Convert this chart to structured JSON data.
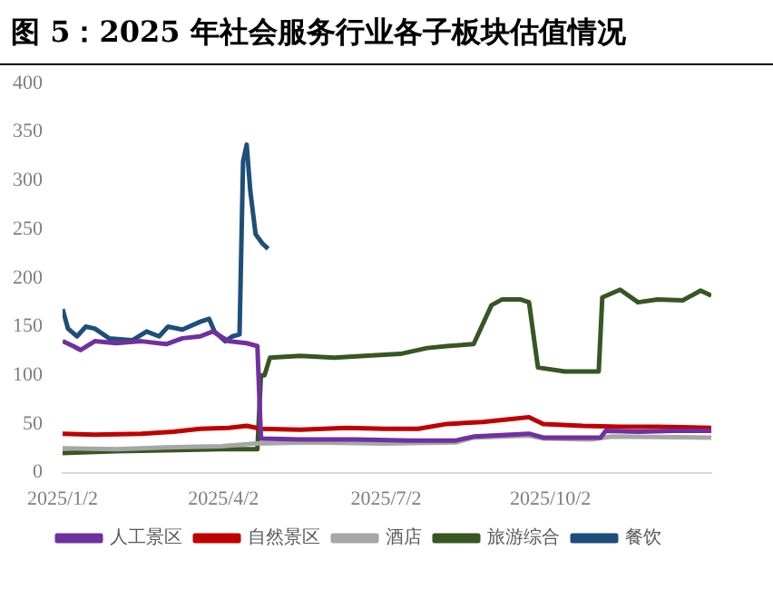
{
  "chart_data": {
    "type": "line",
    "title": "图 5：2025 年社会服务行业各子板块估值情况",
    "xlim": [
      "2025-01-02",
      "2025-12-31"
    ],
    "xticks": [
      {
        "value": "2025-01-02",
        "label": "2025/1/2"
      },
      {
        "value": "2025-04-02",
        "label": "2025/4/2"
      },
      {
        "value": "2025-07-02",
        "label": "2025/7/2"
      },
      {
        "value": "2025-10-02",
        "label": "2025/10/2"
      }
    ],
    "ylim": [
      0,
      400
    ],
    "yticks": [
      0,
      50,
      100,
      150,
      200,
      250,
      300,
      350,
      400
    ],
    "grid": false,
    "legend": "bottom",
    "marker": "none",
    "line_style": "solid",
    "series": [
      {
        "name": "人工景区",
        "color": "#7030a0",
        "x": [
          "2025-01-02",
          "2025-01-08",
          "2025-01-12",
          "2025-01-20",
          "2025-02-01",
          "2025-02-15",
          "2025-03-01",
          "2025-03-10",
          "2025-03-20",
          "2025-03-27",
          "2025-04-05",
          "2025-04-15",
          "2025-04-21",
          "2025-04-23",
          "2025-05-15",
          "2025-06-15",
          "2025-07-15",
          "2025-08-10",
          "2025-08-20",
          "2025-09-20",
          "2025-09-28",
          "2025-10-20",
          "2025-10-30",
          "2025-11-02",
          "2025-11-20",
          "2025-12-10",
          "2025-12-31"
        ],
        "values": [
          135,
          130,
          126,
          135,
          133,
          135,
          132,
          138,
          140,
          145,
          135,
          133,
          130,
          35,
          34,
          34,
          33,
          33,
          37,
          40,
          36,
          36,
          36,
          43,
          42,
          43,
          43
        ]
      },
      {
        "name": "自然景区",
        "color": "#c00000",
        "x": [
          "2025-01-02",
          "2025-01-20",
          "2025-02-15",
          "2025-03-05",
          "2025-03-20",
          "2025-04-05",
          "2025-04-15",
          "2025-04-23",
          "2025-05-15",
          "2025-06-10",
          "2025-07-01",
          "2025-07-20",
          "2025-08-05",
          "2025-08-25",
          "2025-09-10",
          "2025-09-20",
          "2025-09-28",
          "2025-10-20",
          "2025-11-10",
          "2025-12-01",
          "2025-12-31"
        ],
        "values": [
          40,
          39,
          40,
          42,
          45,
          46,
          48,
          45,
          44,
          46,
          45,
          45,
          50,
          52,
          55,
          57,
          50,
          48,
          47,
          47,
          46
        ]
      },
      {
        "name": "酒店",
        "color": "#a6a6a6",
        "x": [
          "2025-01-02",
          "2025-02-01",
          "2025-03-01",
          "2025-04-01",
          "2025-04-20",
          "2025-05-20",
          "2025-07-01",
          "2025-08-10",
          "2025-08-20",
          "2025-09-20",
          "2025-09-28",
          "2025-10-25",
          "2025-11-05",
          "2025-12-31"
        ],
        "values": [
          25,
          24,
          26,
          27,
          30,
          31,
          30,
          31,
          36,
          38,
          35,
          34,
          37,
          36
        ]
      },
      {
        "name": "旅游综合",
        "color": "#375623",
        "x": [
          "2025-01-02",
          "2025-02-01",
          "2025-03-01",
          "2025-04-01",
          "2025-04-21",
          "2025-04-23",
          "2025-04-25",
          "2025-04-28",
          "2025-05-15",
          "2025-06-03",
          "2025-06-20",
          "2025-07-10",
          "2025-07-25",
          "2025-08-05",
          "2025-08-20",
          "2025-08-30",
          "2025-09-05",
          "2025-09-15",
          "2025-09-20",
          "2025-09-25",
          "2025-10-10",
          "2025-10-29",
          "2025-10-31",
          "2025-11-10",
          "2025-11-20",
          "2025-12-01",
          "2025-12-15",
          "2025-12-25",
          "2025-12-31"
        ],
        "values": [
          20,
          22,
          23,
          24,
          24,
          100,
          100,
          118,
          120,
          118,
          120,
          122,
          128,
          130,
          132,
          172,
          178,
          178,
          175,
          108,
          104,
          104,
          180,
          188,
          175,
          178,
          177,
          187,
          182
        ]
      },
      {
        "name": "餐饮",
        "color": "#1f4e79",
        "x": [
          "2025-01-02",
          "2025-01-05",
          "2025-01-10",
          "2025-01-15",
          "2025-01-20",
          "2025-01-28",
          "2025-02-10",
          "2025-02-18",
          "2025-02-25",
          "2025-03-02",
          "2025-03-10",
          "2025-03-20",
          "2025-03-25",
          "2025-03-28",
          "2025-04-03",
          "2025-04-07",
          "2025-04-11",
          "2025-04-13",
          "2025-04-15",
          "2025-04-17",
          "2025-04-20",
          "2025-04-24",
          "2025-04-27"
        ],
        "values": [
          168,
          148,
          140,
          150,
          148,
          138,
          136,
          145,
          140,
          150,
          147,
          155,
          158,
          145,
          135,
          140,
          142,
          320,
          337,
          290,
          245,
          235,
          230
        ]
      }
    ]
  }
}
